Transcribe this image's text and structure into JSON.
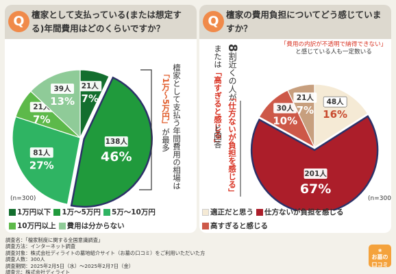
{
  "left": {
    "badge": "Q",
    "title": "檀家として支払っている(または想定する)年間費用はどのくらいですか？",
    "annotation": {
      "line1": "檀家として支払う年間費用の相場は",
      "highlight": "「1万〜5万円」",
      "line2": "が最多"
    },
    "n_label": "(n=300)",
    "legend": [
      {
        "label": "1万円以下",
        "color": "#136e2e"
      },
      {
        "label": "1万〜5万円",
        "color": "#209a3c"
      },
      {
        "label": "5万〜10万円",
        "color": "#2fb463"
      },
      {
        "label": "10万円以上",
        "color": "#5db94a"
      },
      {
        "label": "費用は分からない",
        "color": "#8fcb98"
      }
    ]
  },
  "right": {
    "badge": "Q",
    "title": "檀家の費用負担についてどう感じていますか？",
    "annotation": {
      "num": "8",
      "line1": "割近くの人が",
      "hl1": "「仕方ないが負担を感じる」",
      "line2": "または",
      "hl2": "「高すぎると感じる」",
      "line3": "と回答"
    },
    "callout": {
      "line1": "「費用の内訳が不透明で納得できない」",
      "line2": "と感じている人も一定数いる"
    },
    "n_label": "(n=300)",
    "legend": [
      {
        "label": "適正だと思う",
        "color": "#f5ead5"
      },
      {
        "label": "仕方ないが負担を感じる",
        "color": "#ac1e2a"
      },
      {
        "label": "高すぎると感じる",
        "color": "#cd5848"
      },
      {
        "label": "費用の内訳が不透明で納得できない",
        "color": "#c79f7e"
      }
    ]
  },
  "chart_data": [
    {
      "type": "pie",
      "categories": [
        "1万円以下",
        "1万〜5万円",
        "5万〜10万円",
        "10万円以上",
        "費用は分からない"
      ],
      "counts_label": [
        "21人",
        "138人",
        "81人",
        "21人",
        "39人"
      ],
      "values": [
        7,
        46,
        27,
        7,
        13
      ],
      "value_labels": [
        "7%",
        "46%",
        "27%",
        "7%",
        "13%"
      ],
      "colors": [
        "#136e2e",
        "#209a3c",
        "#2fb463",
        "#5db94a",
        "#8fcb98"
      ]
    },
    {
      "type": "pie",
      "categories": [
        "適正だと思う",
        "仕方ないが負担を感じる",
        "高すぎると感じる",
        "費用の内訳が不透明で納得できない"
      ],
      "counts_label": [
        "48人",
        "201人",
        "30人",
        "21人"
      ],
      "values": [
        16,
        67,
        10,
        7
      ],
      "value_labels": [
        "16%",
        "67%",
        "10%",
        "7%"
      ],
      "colors": [
        "#f5ead5",
        "#ac1e2a",
        "#cd5848",
        "#c79f7e"
      ]
    }
  ],
  "footer": {
    "lines": [
      "調査名：「檀家制度に関する全国意識調査」",
      "調査方法：インターネット調査",
      "調査対象：株式会社ディライトの墓地紹介サイト（お墓の口コミ）をご利用いただいた方",
      "調査人数：300人",
      "調査期間：2025年2月5日（水）〜2025年2月7日（金）",
      "調査元：株式会社ディライト"
    ]
  },
  "logo": {
    "line1": "お墓の",
    "line2": "口コミ"
  }
}
